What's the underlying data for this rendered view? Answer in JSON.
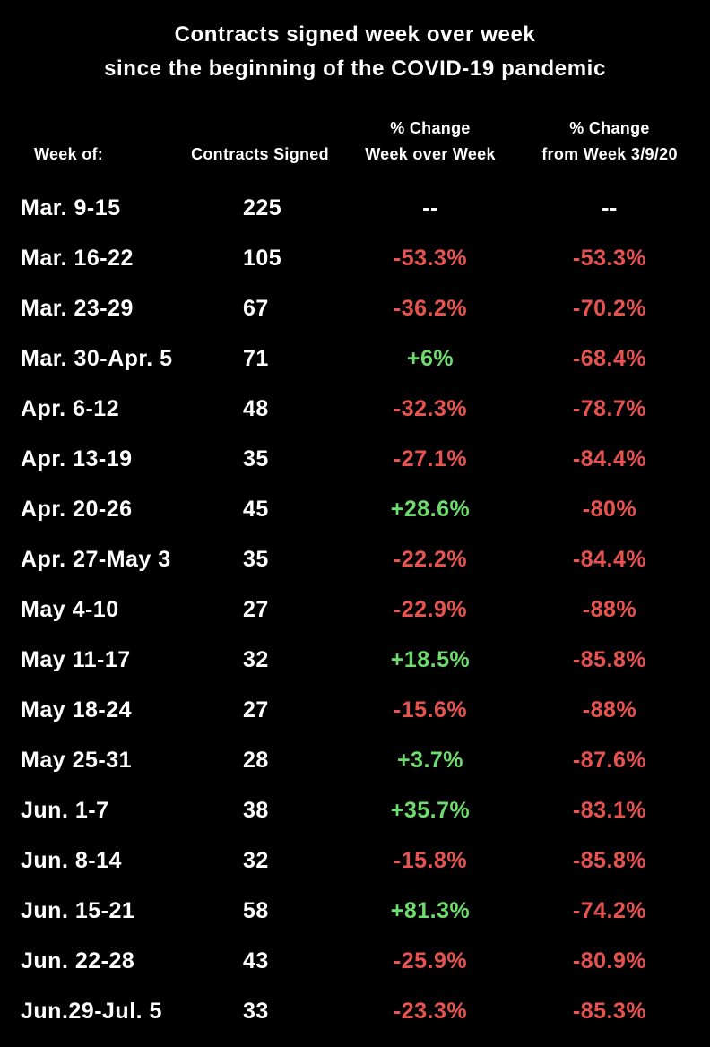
{
  "title": {
    "line1": "Contracts signed week over week",
    "line2": "since the beginning of the COVID-19 pandemic"
  },
  "header": {
    "col1": "Week of:",
    "col2": "Contracts Signed",
    "col3_line1": "% Change",
    "col3_line2": "Week over Week",
    "col4_line1": "% Change",
    "col4_line2": "from Week 3/9/20"
  },
  "colors": {
    "background": "#000000",
    "neutral": "#ffffff",
    "positive": "#6edc6e",
    "negative": "#e8534f"
  },
  "chart_data": {
    "type": "table",
    "title": "Contracts signed week over week since the beginning of the COVID-19 pandemic",
    "columns": [
      "Week of:",
      "Contracts Signed",
      "% Change Week over Week",
      "% Change from Week 3/9/20"
    ],
    "rows": [
      {
        "week": "Mar. 9-15",
        "contracts": "225",
        "wow": "--",
        "wow_dir": "none",
        "base": "--",
        "base_dir": "none"
      },
      {
        "week": "Mar. 16-22",
        "contracts": "105",
        "wow": "-53.3%",
        "wow_dir": "down",
        "base": "-53.3%",
        "base_dir": "down"
      },
      {
        "week": "Mar. 23-29",
        "contracts": "67",
        "wow": "-36.2%",
        "wow_dir": "down",
        "base": "-70.2%",
        "base_dir": "down"
      },
      {
        "week": "Mar. 30-Apr. 5",
        "contracts": "71",
        "wow": "+6%",
        "wow_dir": "up",
        "base": "-68.4%",
        "base_dir": "down"
      },
      {
        "week": "Apr. 6-12",
        "contracts": "48",
        "wow": "-32.3%",
        "wow_dir": "down",
        "base": "-78.7%",
        "base_dir": "down"
      },
      {
        "week": "Apr. 13-19",
        "contracts": "35",
        "wow": "-27.1%",
        "wow_dir": "down",
        "base": "-84.4%",
        "base_dir": "down"
      },
      {
        "week": "Apr. 20-26",
        "contracts": "45",
        "wow": "+28.6%",
        "wow_dir": "up",
        "base": "-80%",
        "base_dir": "down"
      },
      {
        "week": "Apr. 27-May 3",
        "contracts": "35",
        "wow": "-22.2%",
        "wow_dir": "down",
        "base": "-84.4%",
        "base_dir": "down"
      },
      {
        "week": "May 4-10",
        "contracts": "27",
        "wow": "-22.9%",
        "wow_dir": "down",
        "base": "-88%",
        "base_dir": "down"
      },
      {
        "week": "May 11-17",
        "contracts": "32",
        "wow": "+18.5%",
        "wow_dir": "up",
        "base": "-85.8%",
        "base_dir": "down"
      },
      {
        "week": "May 18-24",
        "contracts": "27",
        "wow": "-15.6%",
        "wow_dir": "down",
        "base": "-88%",
        "base_dir": "down"
      },
      {
        "week": "May 25-31",
        "contracts": "28",
        "wow": "+3.7%",
        "wow_dir": "up",
        "base": "-87.6%",
        "base_dir": "down"
      },
      {
        "week": "Jun. 1-7",
        "contracts": "38",
        "wow": "+35.7%",
        "wow_dir": "up",
        "base": "-83.1%",
        "base_dir": "down"
      },
      {
        "week": "Jun. 8-14",
        "contracts": "32",
        "wow": "-15.8%",
        "wow_dir": "down",
        "base": "-85.8%",
        "base_dir": "down"
      },
      {
        "week": "Jun. 15-21",
        "contracts": "58",
        "wow": "+81.3%",
        "wow_dir": "up",
        "base": "-74.2%",
        "base_dir": "down"
      },
      {
        "week": "Jun. 22-28",
        "contracts": "43",
        "wow": "-25.9%",
        "wow_dir": "down",
        "base": "-80.9%",
        "base_dir": "down"
      },
      {
        "week": "Jun.29-Jul. 5",
        "contracts": "33",
        "wow": "-23.3%",
        "wow_dir": "down",
        "base": "-85.3%",
        "base_dir": "down"
      }
    ]
  }
}
